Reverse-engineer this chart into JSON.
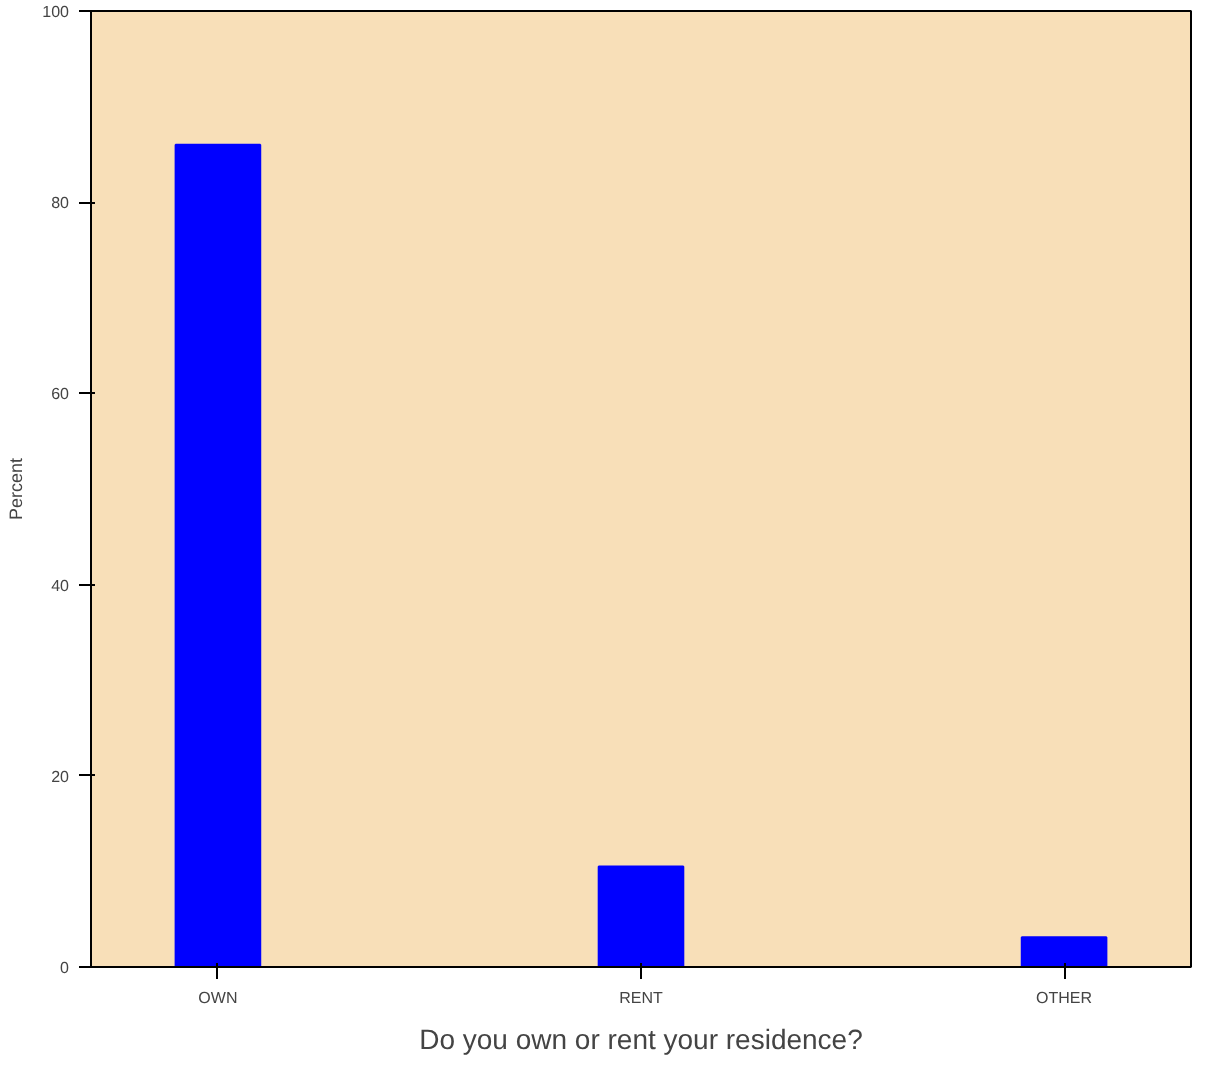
{
  "chart_data": {
    "type": "bar",
    "xlabel": "Do you own or rent your residence?",
    "ylabel": "Percent",
    "categories": [
      "OWN",
      "RENT",
      "OTHER"
    ],
    "values": [
      86.0,
      10.5,
      3.1
    ],
    "color": "#0000ff",
    "ylim": [
      0,
      100
    ],
    "yticks": [
      0,
      20,
      40,
      60,
      80,
      100
    ],
    "grid": false
  }
}
